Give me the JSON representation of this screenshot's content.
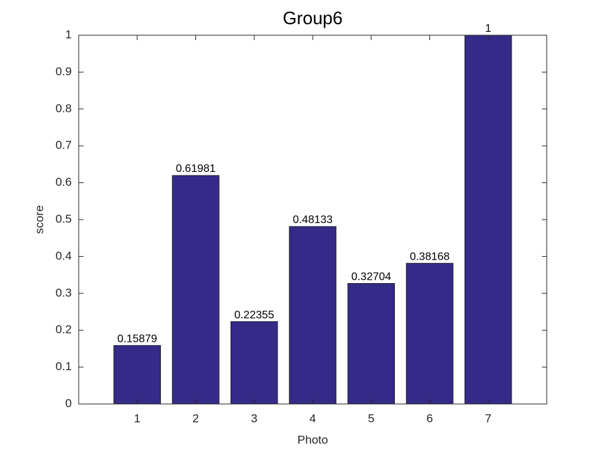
{
  "chart_data": {
    "type": "bar",
    "title": "Group6",
    "xlabel": "Photo",
    "ylabel": "score",
    "x": [
      1,
      2,
      3,
      4,
      5,
      6,
      7
    ],
    "values": [
      0.15879,
      0.61981,
      0.22355,
      0.48133,
      0.32704,
      0.38168,
      1
    ],
    "color": "#352a87",
    "xlim": [
      0,
      8
    ],
    "xticks": [
      1,
      2,
      3,
      4,
      5,
      6,
      7
    ],
    "ylim": [
      0,
      1
    ],
    "yticks": [
      0,
      0.1,
      0.2,
      0.3,
      0.4,
      0.5,
      0.6,
      0.7,
      0.8,
      0.9,
      1
    ],
    "grid": false
  }
}
